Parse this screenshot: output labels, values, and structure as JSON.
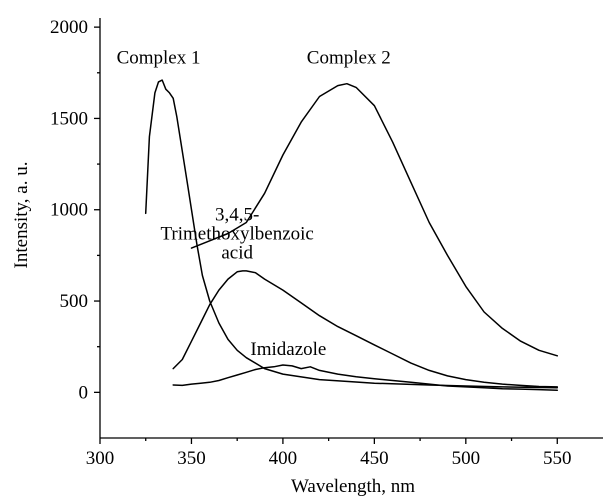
{
  "chart_data": {
    "type": "line",
    "title": "",
    "xlabel": "Wavelength, nm",
    "ylabel": "Intensity, a. u.",
    "xlim": [
      300,
      575
    ],
    "ylim": [
      -250,
      2050
    ],
    "x_ticks": [
      300,
      350,
      400,
      450,
      500,
      550
    ],
    "y_ticks": [
      0,
      500,
      1000,
      1500,
      2000
    ],
    "grid": false,
    "legend": "none",
    "series": [
      {
        "name": "Complex 1",
        "x": [
          325,
          327,
          330,
          332,
          334,
          336,
          338,
          340,
          342,
          345,
          348,
          350,
          353,
          356,
          360,
          365,
          370,
          375,
          380,
          390,
          400,
          420,
          450,
          480,
          500,
          520,
          550
        ],
        "y": [
          980,
          1400,
          1640,
          1700,
          1710,
          1660,
          1640,
          1610,
          1510,
          1320,
          1130,
          1000,
          810,
          640,
          500,
          380,
          290,
          230,
          190,
          130,
          100,
          70,
          50,
          40,
          35,
          30,
          25
        ]
      },
      {
        "name": "Complex 2",
        "x": [
          350,
          360,
          370,
          380,
          390,
          400,
          410,
          420,
          430,
          435,
          440,
          450,
          460,
          470,
          480,
          490,
          500,
          510,
          520,
          530,
          540,
          550
        ],
        "y": [
          790,
          830,
          870,
          930,
          1090,
          1300,
          1480,
          1620,
          1680,
          1690,
          1670,
          1570,
          1370,
          1150,
          930,
          750,
          580,
          440,
          350,
          280,
          230,
          200
        ]
      },
      {
        "name": "3,4,5-Trimethoxylbenzoic acid",
        "x": [
          340,
          345,
          350,
          355,
          360,
          365,
          370,
          375,
          378,
          380,
          385,
          390,
          400,
          410,
          420,
          430,
          440,
          450,
          460,
          470,
          480,
          490,
          500,
          510,
          520,
          530,
          540,
          550
        ],
        "y": [
          130,
          180,
          280,
          380,
          480,
          560,
          620,
          660,
          665,
          665,
          655,
          620,
          560,
          490,
          420,
          360,
          310,
          260,
          210,
          160,
          120,
          90,
          70,
          55,
          45,
          38,
          32,
          30
        ]
      },
      {
        "name": "Imidazole",
        "x": [
          340,
          345,
          350,
          355,
          360,
          365,
          370,
          375,
          380,
          385,
          390,
          395,
          400,
          405,
          410,
          415,
          420,
          430,
          440,
          450,
          460,
          470,
          480,
          490,
          500,
          510,
          520,
          530,
          540,
          550
        ],
        "y": [
          40,
          38,
          45,
          50,
          55,
          65,
          80,
          95,
          110,
          125,
          135,
          140,
          150,
          145,
          130,
          140,
          120,
          100,
          85,
          75,
          65,
          55,
          45,
          35,
          30,
          25,
          20,
          18,
          15,
          12
        ]
      }
    ],
    "annotations": [
      {
        "text": "Complex 1",
        "x": 332,
        "y": 1800
      },
      {
        "text": "Complex 2",
        "x": 436,
        "y": 1800
      },
      {
        "lines": [
          "3,4,5-",
          "Trimethoxylbenzoic",
          "acid"
        ],
        "x": 375,
        "y": 940
      },
      {
        "text": "Imidazole",
        "x": 403,
        "y": 205
      }
    ]
  }
}
